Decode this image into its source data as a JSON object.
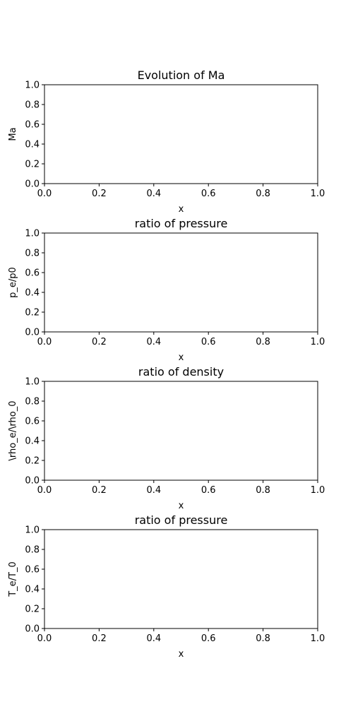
{
  "figure": {
    "background": "#ffffff"
  },
  "chart_data": [
    {
      "type": "line",
      "title": "Evolution of Ma",
      "xlabel": "x",
      "ylabel": "Ma",
      "xlim": [
        0.0,
        1.0
      ],
      "ylim": [
        0.0,
        1.0
      ],
      "xticks": [
        "0.0",
        "0.2",
        "0.4",
        "0.6",
        "0.8",
        "1.0"
      ],
      "yticks": [
        "0.0",
        "0.2",
        "0.4",
        "0.6",
        "0.8",
        "1.0"
      ],
      "grid": false,
      "series": []
    },
    {
      "type": "line",
      "title": "ratio of pressure",
      "xlabel": "x",
      "ylabel": "p_e/p0",
      "xlim": [
        0.0,
        1.0
      ],
      "ylim": [
        0.0,
        1.0
      ],
      "xticks": [
        "0.0",
        "0.2",
        "0.4",
        "0.6",
        "0.8",
        "1.0"
      ],
      "yticks": [
        "0.0",
        "0.2",
        "0.4",
        "0.6",
        "0.8",
        "1.0"
      ],
      "grid": false,
      "series": []
    },
    {
      "type": "line",
      "title": "ratio of density",
      "xlabel": "x",
      "ylabel": "\\rho_e/\\rho_0",
      "xlim": [
        0.0,
        1.0
      ],
      "ylim": [
        0.0,
        1.0
      ],
      "xticks": [
        "0.0",
        "0.2",
        "0.4",
        "0.6",
        "0.8",
        "1.0"
      ],
      "yticks": [
        "0.0",
        "0.2",
        "0.4",
        "0.6",
        "0.8",
        "1.0"
      ],
      "grid": false,
      "series": []
    },
    {
      "type": "line",
      "title": "ratio of pressure",
      "xlabel": "x",
      "ylabel": "T_e/T_0",
      "xlim": [
        0.0,
        1.0
      ],
      "ylim": [
        0.0,
        1.0
      ],
      "xticks": [
        "0.0",
        "0.2",
        "0.4",
        "0.6",
        "0.8",
        "1.0"
      ],
      "yticks": [
        "0.0",
        "0.2",
        "0.4",
        "0.6",
        "0.8",
        "1.0"
      ],
      "grid": false,
      "series": []
    }
  ]
}
